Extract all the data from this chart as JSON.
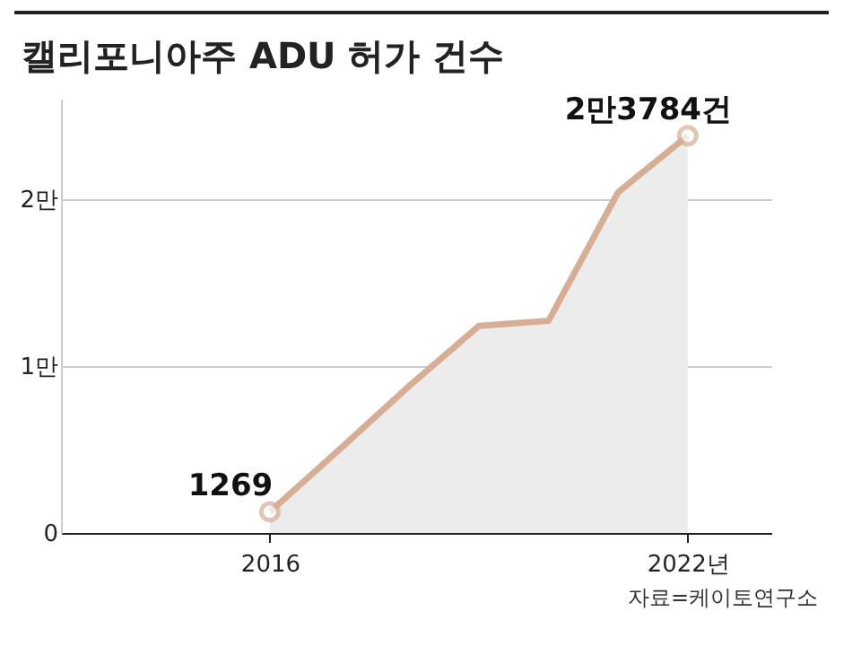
{
  "chart_data": {
    "type": "area",
    "title": "캘리포니아주 ADU 허가 건수",
    "x": [
      2016,
      2017,
      2018,
      2019,
      2020,
      2021,
      2022
    ],
    "series": [
      {
        "color": "#d6ae95",
        "values": [
          0.1269,
          0.5,
          0.88,
          1.24,
          1.27,
          2.04,
          2.3784
        ]
      }
    ],
    "xlim": [
      2013,
      2023.2
    ],
    "xticks": [
      {
        "value": 2016,
        "label": "2016"
      },
      {
        "value": 2022,
        "label": "2022년"
      }
    ],
    "ylim": [
      0,
      2.6
    ],
    "yticks": [
      0,
      {
        "value": 1,
        "label": "1만"
      },
      {
        "value": 2,
        "label": "2만"
      }
    ],
    "grid": "y",
    "annotations": [
      {
        "text": "1269",
        "x": 2016,
        "y": 0.1269
      },
      {
        "text": "2만3784건",
        "x": 2022,
        "y": 2.3784
      },
      "자료=케이토연구소"
    ]
  }
}
